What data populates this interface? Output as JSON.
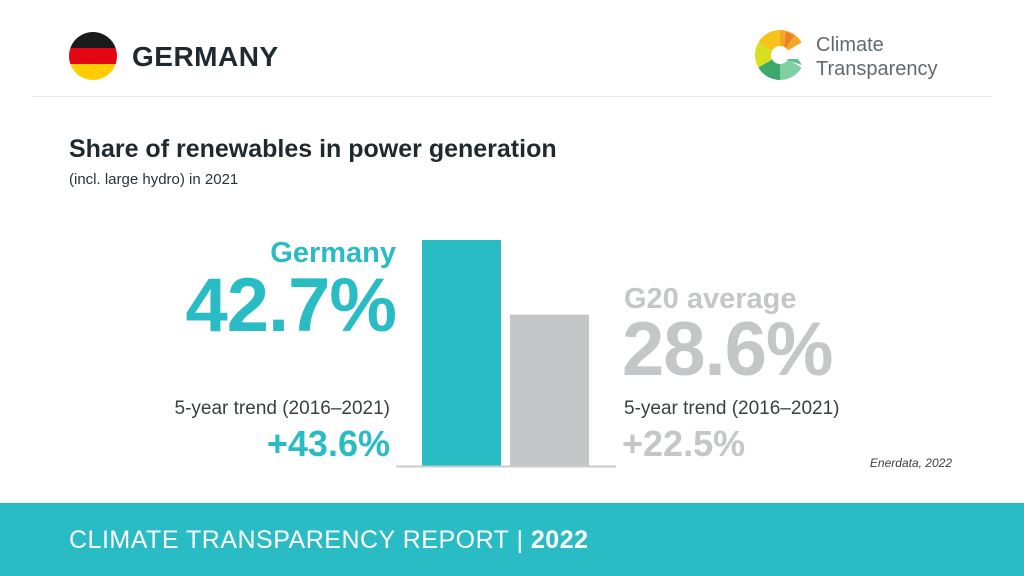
{
  "header": {
    "country": "GERMANY",
    "logo_line1": "Climate",
    "logo_line2": "Transparency",
    "flag_colors": [
      "#1a1a1a",
      "#e30613",
      "#ffcc00"
    ]
  },
  "title": "Share of renewables in power generation",
  "subtitle": "(incl. large hydro) in 2021",
  "germany": {
    "label": "Germany",
    "value": "42.7%",
    "trend_label": "5-year trend (2016–2021)",
    "trend_value": "+43.6%"
  },
  "g20": {
    "label": "G20 average",
    "value": "28.6%",
    "trend_label": "5-year trend (2016–2021)",
    "trend_value": "+22.5%"
  },
  "source": "Enerdata, 2022",
  "footer": {
    "report": "CLIMATE TRANSPARENCY REPORT",
    "separator": "|",
    "year": "2022"
  },
  "colors": {
    "accent": "#2abcc5",
    "g20": "#c4c6c7",
    "dark": "#1e2a2f"
  },
  "chart_data": {
    "type": "bar",
    "categories": [
      "Germany",
      "G20 average"
    ],
    "values": [
      42.7,
      28.6
    ],
    "colors": [
      "#2abcc5",
      "#c4c6c7"
    ],
    "title": "Share of renewables in power generation",
    "subtitle": "(incl. large hydro) in 2021",
    "unit": "%",
    "xlabel": "",
    "ylabel": "",
    "ylim": [
      0,
      42.7
    ],
    "grid": false
  }
}
